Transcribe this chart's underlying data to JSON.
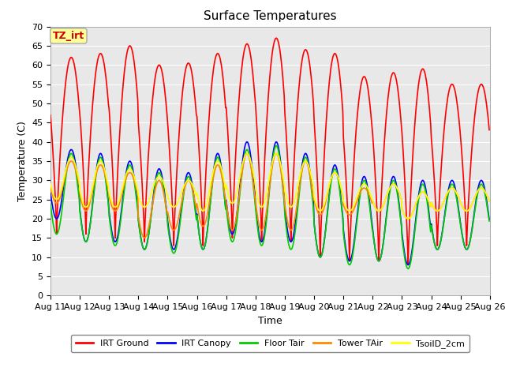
{
  "title": "Surface Temperatures",
  "xlabel": "Time",
  "ylabel": "Temperature (C)",
  "ylim": [
    0,
    70
  ],
  "yticks": [
    0,
    5,
    10,
    15,
    20,
    25,
    30,
    35,
    40,
    45,
    50,
    55,
    60,
    65,
    70
  ],
  "xtick_labels": [
    "Aug 11",
    "Aug 12",
    "Aug 13",
    "Aug 14",
    "Aug 15",
    "Aug 16",
    "Aug 17",
    "Aug 18",
    "Aug 19",
    "Aug 20",
    "Aug 21",
    "Aug 22",
    "Aug 23",
    "Aug 24",
    "Aug 25",
    "Aug 26"
  ],
  "series": [
    {
      "name": "IRT Ground",
      "color": "#ff0000",
      "lw": 1.2,
      "day_peaks": [
        62,
        63,
        65,
        60,
        60.5,
        63,
        65.5,
        67,
        64,
        63,
        57,
        58,
        59,
        55,
        55
      ],
      "day_mins": [
        16,
        16,
        15,
        14,
        13,
        13,
        15,
        14,
        14,
        10,
        9,
        9,
        8,
        13,
        13
      ],
      "sharp": true
    },
    {
      "name": "IRT Canopy",
      "color": "#0000ff",
      "lw": 1.2,
      "day_peaks": [
        38,
        37,
        35,
        33,
        32,
        37,
        40,
        40,
        37,
        34,
        31,
        31,
        30,
        30,
        30
      ],
      "day_mins": [
        20,
        14,
        14,
        12,
        12,
        12,
        16,
        14,
        14,
        10,
        9,
        9,
        8,
        12,
        12
      ],
      "sharp": false
    },
    {
      "name": "Floor Tair",
      "color": "#00cc00",
      "lw": 1.2,
      "day_peaks": [
        37,
        36,
        34,
        32,
        31,
        36,
        38,
        39,
        36,
        33,
        30,
        30,
        29,
        29,
        29
      ],
      "day_mins": [
        16,
        14,
        13,
        12,
        11,
        12,
        14,
        13,
        12,
        10,
        8,
        9,
        7,
        12,
        12
      ],
      "sharp": false
    },
    {
      "name": "Tower TAir",
      "color": "#ff8800",
      "lw": 1.2,
      "day_peaks": [
        35,
        34,
        32,
        30,
        30,
        34,
        37,
        37,
        35,
        32,
        28,
        29,
        27,
        28,
        28
      ],
      "day_mins": [
        24,
        22,
        22,
        15,
        17,
        18,
        17,
        17,
        17,
        21,
        21,
        22,
        20,
        22,
        22
      ],
      "sharp": false
    },
    {
      "name": "TsoilD_2cm",
      "color": "#ffff00",
      "lw": 1.2,
      "day_peaks": [
        36,
        35,
        33,
        31,
        30,
        35,
        37,
        37,
        35,
        32,
        29,
        29,
        27,
        28,
        28
      ],
      "day_mins": [
        25,
        23,
        23,
        23,
        23,
        22,
        24,
        23,
        23,
        22,
        22,
        22,
        20,
        22,
        22
      ],
      "sharp": false
    }
  ],
  "annotation_text": "TZ_irt",
  "annotation_color": "#cc0000",
  "annotation_bg": "#ffff99",
  "annotation_border": "#aaaaaa",
  "bg_color": "#e8e8e8",
  "grid_color": "#ffffff",
  "title_fontsize": 11,
  "axis_fontsize": 9,
  "tick_fontsize": 8
}
